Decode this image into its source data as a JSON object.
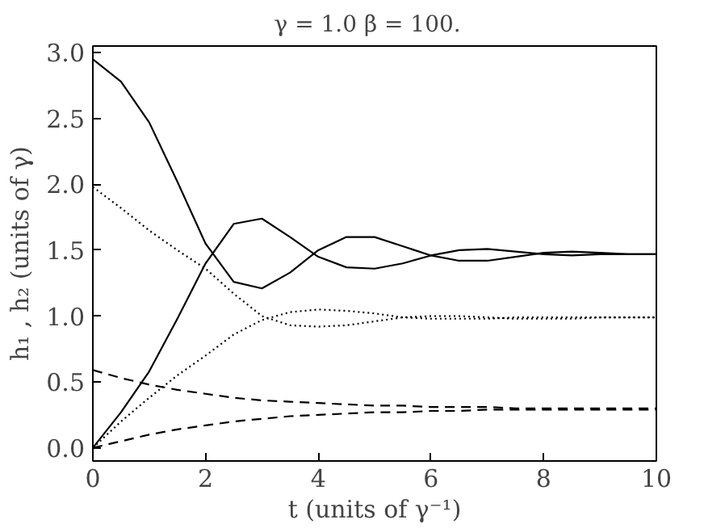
{
  "chart_data": {
    "type": "line",
    "title": "γ = 1.0   β = 100.",
    "xlabel": "t (units of γ⁻¹)",
    "ylabel": "h₁ , h₂ (units of γ)",
    "x": [
      0,
      0.5,
      1,
      1.5,
      2,
      2.5,
      3,
      3.5,
      4,
      4.5,
      5,
      5.5,
      6,
      6.5,
      7,
      7.5,
      8,
      8.5,
      9,
      9.5,
      10
    ],
    "series": [
      {
        "color": "#000000",
        "line_style": "solid",
        "values": [
          2.95,
          2.78,
          2.47,
          2.02,
          1.55,
          1.26,
          1.21,
          1.33,
          1.5,
          1.6,
          1.6,
          1.53,
          1.46,
          1.42,
          1.42,
          1.45,
          1.48,
          1.49,
          1.48,
          1.47,
          1.47
        ]
      },
      {
        "color": "#000000",
        "line_style": "solid",
        "values": [
          0,
          0.27,
          0.58,
          0.98,
          1.4,
          1.7,
          1.74,
          1.6,
          1.45,
          1.37,
          1.36,
          1.4,
          1.46,
          1.5,
          1.51,
          1.49,
          1.47,
          1.46,
          1.47,
          1.47,
          1.47
        ]
      },
      {
        "color": "#000000",
        "line_style": "dotted",
        "values": [
          1.98,
          1.82,
          1.65,
          1.5,
          1.36,
          1.17,
          1.0,
          0.93,
          0.92,
          0.93,
          0.96,
          0.99,
          1.0,
          1.0,
          0.99,
          0.98,
          0.98,
          0.98,
          0.99,
          0.99,
          0.99
        ]
      },
      {
        "color": "#000000",
        "line_style": "dotted",
        "values": [
          0,
          0.2,
          0.38,
          0.55,
          0.7,
          0.86,
          0.97,
          1.03,
          1.05,
          1.04,
          1.02,
          0.99,
          0.98,
          0.98,
          0.98,
          0.99,
          0.99,
          0.99,
          0.99,
          0.99,
          0.99
        ]
      },
      {
        "color": "#000000",
        "line_style": "dashed",
        "values": [
          0.59,
          0.53,
          0.48,
          0.44,
          0.41,
          0.38,
          0.36,
          0.35,
          0.34,
          0.33,
          0.32,
          0.32,
          0.31,
          0.31,
          0.31,
          0.3,
          0.3,
          0.3,
          0.3,
          0.3,
          0.3
        ]
      },
      {
        "color": "#000000",
        "line_style": "dashed",
        "values": [
          0,
          0.05,
          0.1,
          0.14,
          0.17,
          0.2,
          0.22,
          0.24,
          0.25,
          0.26,
          0.27,
          0.27,
          0.28,
          0.28,
          0.29,
          0.29,
          0.29,
          0.29,
          0.29,
          0.29,
          0.29
        ]
      }
    ],
    "xlim": [
      0,
      10
    ],
    "xticks": [
      0,
      2,
      4,
      6,
      8,
      10
    ],
    "ylim": [
      -0.1,
      3.05
    ],
    "yticks": [
      {
        "value": 0,
        "label": "0.0"
      },
      {
        "value": 0.5,
        "label": "0.5"
      },
      {
        "value": 1,
        "label": "1.0"
      },
      {
        "value": 1.5,
        "label": "1.5"
      },
      {
        "value": 2,
        "label": "2.0"
      },
      {
        "value": 2.5,
        "label": "2.5"
      },
      {
        "value": 3,
        "label": "3.0"
      }
    ]
  }
}
